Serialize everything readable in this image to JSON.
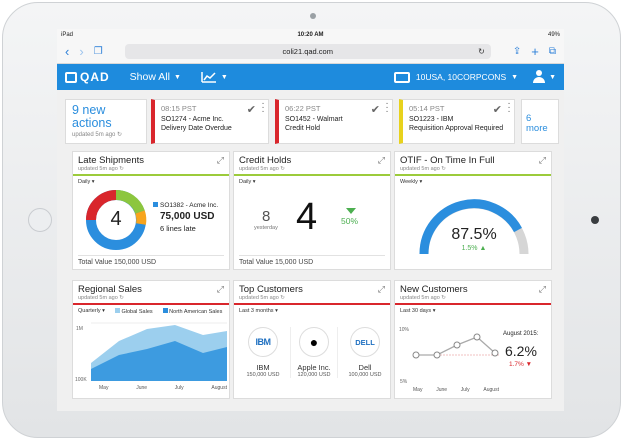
{
  "status": {
    "device": "iPad",
    "time": "10:20 AM",
    "battery": "49%"
  },
  "browser": {
    "url": "coli21.qad.com",
    "reload": "↻"
  },
  "app": {
    "logo": "QAD",
    "show_all": "Show All",
    "account": "10USA, 10CORPCONS"
  },
  "alerts": {
    "new_actions": "9 new actions",
    "updated": "updated 5m ago",
    "items": [
      {
        "time": "08:15 PST",
        "l1": "SO1274 - Acme Inc.",
        "l2": "Delivery Date Overdue",
        "color": "#d9262c"
      },
      {
        "time": "06:22 PST",
        "l1": "SO1452 - Walmart",
        "l2": "Credit Hold",
        "color": "#d9262c"
      },
      {
        "time": "05:14 PST",
        "l1": "SO1223 - IBM",
        "l2": "Requisition Approval Required",
        "color": "#e8d21d"
      }
    ],
    "more": "6 more"
  },
  "tiles": {
    "late": {
      "title": "Late Shipments",
      "updated": "updated 5m ago",
      "period": "Daily",
      "count": "4",
      "so": "SO1382 - Acme Inc.",
      "amount": "75,000 USD",
      "lines": "6 lines late",
      "footer": "Total Value 150,000 USD"
    },
    "credit": {
      "title": "Credit Holds",
      "updated": "updated 5m ago",
      "period": "Daily",
      "yest": "8",
      "yest_label": "yesterday",
      "count": "4",
      "pct": "50%",
      "footer": "Total Value 15,000 USD"
    },
    "otif": {
      "title": "OTIF - On Time In Full",
      "updated": "updated 5m ago",
      "period": "Weekly",
      "value": "87.5%",
      "delta": "1.5%"
    },
    "regional": {
      "title": "Regional Sales",
      "updated": "updated 5m ago",
      "period": "Quarterly",
      "legend1": "Global Sales",
      "legend2": "North American Sales",
      "y1": "1M",
      "y2": "100K",
      "months": [
        "May",
        "June",
        "July",
        "August"
      ]
    },
    "customers": {
      "title": "Top Customers",
      "updated": "updated 5m ago",
      "period": "Last 3 months",
      "list": [
        {
          "logo": "IBM",
          "name": "IBM",
          "value": "150,000 USD"
        },
        {
          "logo": "",
          "name": "Apple Inc.",
          "value": "120,000 USD"
        },
        {
          "logo": "DELL",
          "name": "Dell",
          "value": "100,000 USD"
        }
      ]
    },
    "newcust": {
      "title": "New Customers",
      "updated": "updated 5m ago",
      "period": "Last 30 days",
      "y1": "10%",
      "y2": "5%",
      "months": [
        "May",
        "June",
        "July",
        "August"
      ],
      "period_label": "August 2015:",
      "value": "6.2%",
      "delta": "1.7%"
    }
  },
  "colors": {
    "accent": "#1e8bdd",
    "good": "#4caf50",
    "bad": "#d9262c",
    "ring_blue": "#2b8ede",
    "ring_green": "#8cc63e",
    "ring_orange": "#f7a41d"
  }
}
